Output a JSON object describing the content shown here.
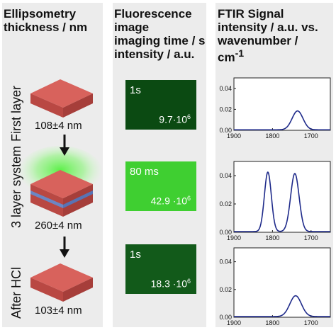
{
  "headers": {
    "col1": "Ellipsometry\nthickness / nm",
    "col2": "Fluorescence\nimage\nimaging time / s\nintensity / a.u.",
    "col3_line1": "FTIR Signal\nintensity / a.u. vs.\nwavenumber /",
    "col3_unit": "cm",
    "col3_unit_exp": "-1"
  },
  "rows": [
    {
      "label": "First layer",
      "thickness": "108±4 nm",
      "time": "1s",
      "intensity": "9.7·10",
      "exp": "6",
      "fill": 0.1
    },
    {
      "label": "3 layer system",
      "thickness": "260±4 nm",
      "time": "80 ms",
      "intensity": "42.9 ·10",
      "exp": "6",
      "fill": 0.75
    },
    {
      "label": "After HCl",
      "thickness": "103±4 nm",
      "time": "1s",
      "intensity": "18.3 ·10",
      "exp": "6",
      "fill": 0.18
    }
  ],
  "colors": {
    "slab_top": "#d8625c",
    "slab_left": "#b94843",
    "slab_right": "#a63e3a",
    "inter_layer": "#6b86c4",
    "glow": "#54f040",
    "line": "#1e2a8a"
  },
  "chart_data": [
    {
      "type": "line",
      "xlim": [
        1900,
        1650
      ],
      "ylim": [
        0,
        0.05
      ],
      "xticks": [
        "1900",
        "1800",
        "1700"
      ],
      "yticks": [
        "0.00",
        "0.02",
        "0.04"
      ],
      "peaks": [
        {
          "x": 1735,
          "y": 0.018,
          "w": 14
        }
      ]
    },
    {
      "type": "line",
      "xlim": [
        1900,
        1650
      ],
      "ylim": [
        0,
        0.05
      ],
      "xticks": [
        "1900",
        "1800",
        "1700"
      ],
      "yticks": [
        "0.00",
        "0.02",
        "0.04"
      ],
      "peaks": [
        {
          "x": 1812,
          "y": 0.042,
          "w": 9
        },
        {
          "x": 1742,
          "y": 0.041,
          "w": 11
        }
      ]
    },
    {
      "type": "line",
      "xlim": [
        1900,
        1650
      ],
      "ylim": [
        0,
        0.05
      ],
      "xticks": [
        "1900",
        "1800",
        "1700"
      ],
      "yticks": [
        "0.00",
        "0.02",
        "0.04"
      ],
      "peaks": [
        {
          "x": 1740,
          "y": 0.015,
          "w": 15
        }
      ]
    }
  ]
}
